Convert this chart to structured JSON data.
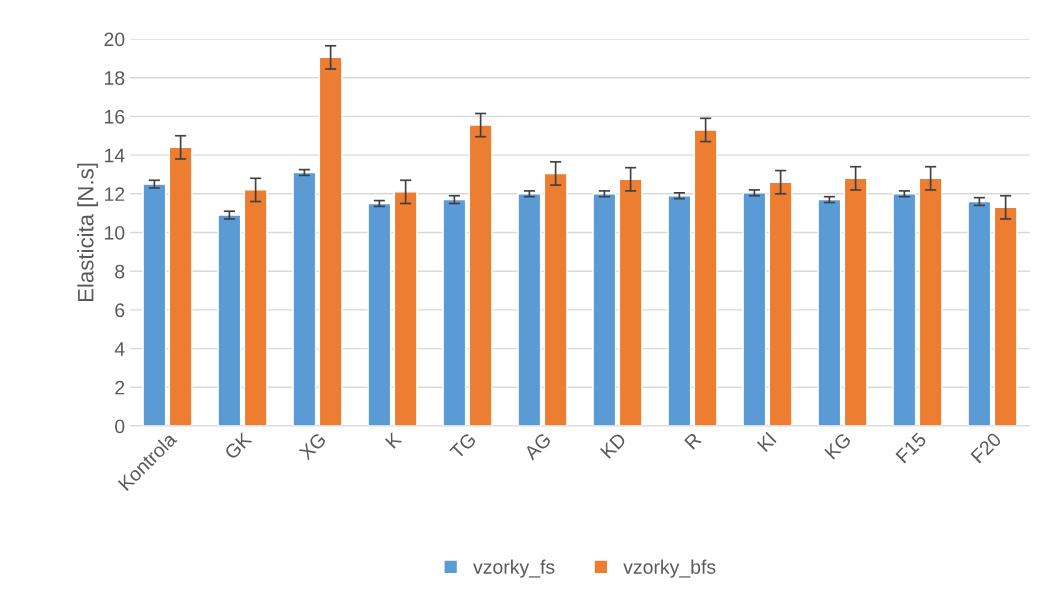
{
  "chart_data": {
    "type": "bar",
    "ylabel": "Elasticita [N.s]",
    "categories": [
      "Kontrola",
      "GK",
      "XG",
      "K",
      "TG",
      "AG",
      "KD",
      "R",
      "Kl",
      "KG",
      "F15",
      "F20"
    ],
    "series": [
      {
        "name": "vzorky_fs",
        "color": "#5b9bd5",
        "values": [
          12.5,
          10.9,
          13.1,
          11.5,
          11.7,
          12.0,
          12.0,
          11.9,
          12.05,
          11.7,
          12.0,
          11.6
        ],
        "errors": [
          0.2,
          0.2,
          0.15,
          0.15,
          0.2,
          0.15,
          0.15,
          0.15,
          0.15,
          0.15,
          0.15,
          0.2
        ]
      },
      {
        "name": "vzorky_bfs",
        "color": "#ed7d31",
        "values": [
          14.4,
          12.2,
          19.05,
          12.1,
          15.55,
          13.05,
          12.75,
          15.3,
          12.6,
          12.8,
          12.8,
          11.3
        ],
        "errors": [
          0.6,
          0.6,
          0.6,
          0.6,
          0.6,
          0.6,
          0.6,
          0.6,
          0.6,
          0.6,
          0.6,
          0.6
        ]
      }
    ],
    "ylim": [
      0,
      20
    ],
    "yticks": [
      0,
      2,
      4,
      6,
      8,
      10,
      12,
      14,
      16,
      18,
      20
    ],
    "grid": "y",
    "legend": "bottom"
  }
}
